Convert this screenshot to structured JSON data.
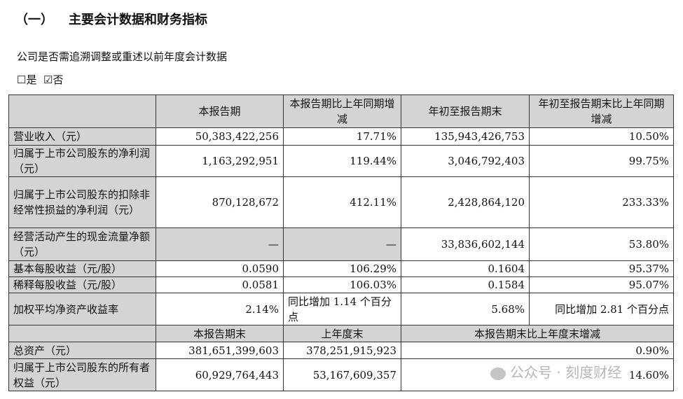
{
  "heading": {
    "num": "（一）",
    "title": "主要会计数据和财务指标"
  },
  "question": "公司是否需追溯调整或重述以前年度会计数据",
  "options": {
    "yes": "☐是",
    "no": "☑否"
  },
  "header1": [
    "",
    "本报告期",
    "本报告期比上年同期增减",
    "年初至报告期末",
    "年初至报告期末比上年同期增减"
  ],
  "rows": [
    [
      "营业收入（元）",
      "50,383,422,256",
      "17.71%",
      "135,943,426,753",
      "10.50%"
    ],
    [
      "归属于上市公司股东的净利润（元）",
      "1,163,292,951",
      "119.44%",
      "3,046,792,403",
      "99.75%"
    ],
    [
      "归属于上市公司股东的扣除非经常性损益的净利润（元）",
      "870,128,672",
      "412.11%",
      "2,428,864,120",
      "233.33%"
    ],
    [
      "经营活动产生的现金流量净额（元）",
      "—",
      "—",
      "33,836,602,144",
      "53.80%"
    ],
    [
      "基本每股收益（元/股）",
      "0.0590",
      "106.29%",
      "0.1604",
      "95.37%"
    ],
    [
      "稀释每股收益（元/股）",
      "0.0581",
      "106.03%",
      "0.1584",
      "95.07%"
    ],
    [
      "加权平均净资产收益率",
      "2.14%",
      "同比增加 1.14 个百分点",
      "5.68%",
      "同比增加 2.81 个百分点"
    ]
  ],
  "header2": [
    "",
    "本报告期末",
    "上年度末",
    "本报告期末比上年度末增减"
  ],
  "rows2": [
    [
      "总资产（元）",
      "381,651,399,603",
      "378,251,915,923",
      "0.90%"
    ],
    [
      "归属于上市公司股东的所有者权益（元）",
      "60,929,764,443",
      "53,167,609,357",
      "14.60%"
    ]
  ],
  "watermark": "公众号 · 刻度财经"
}
